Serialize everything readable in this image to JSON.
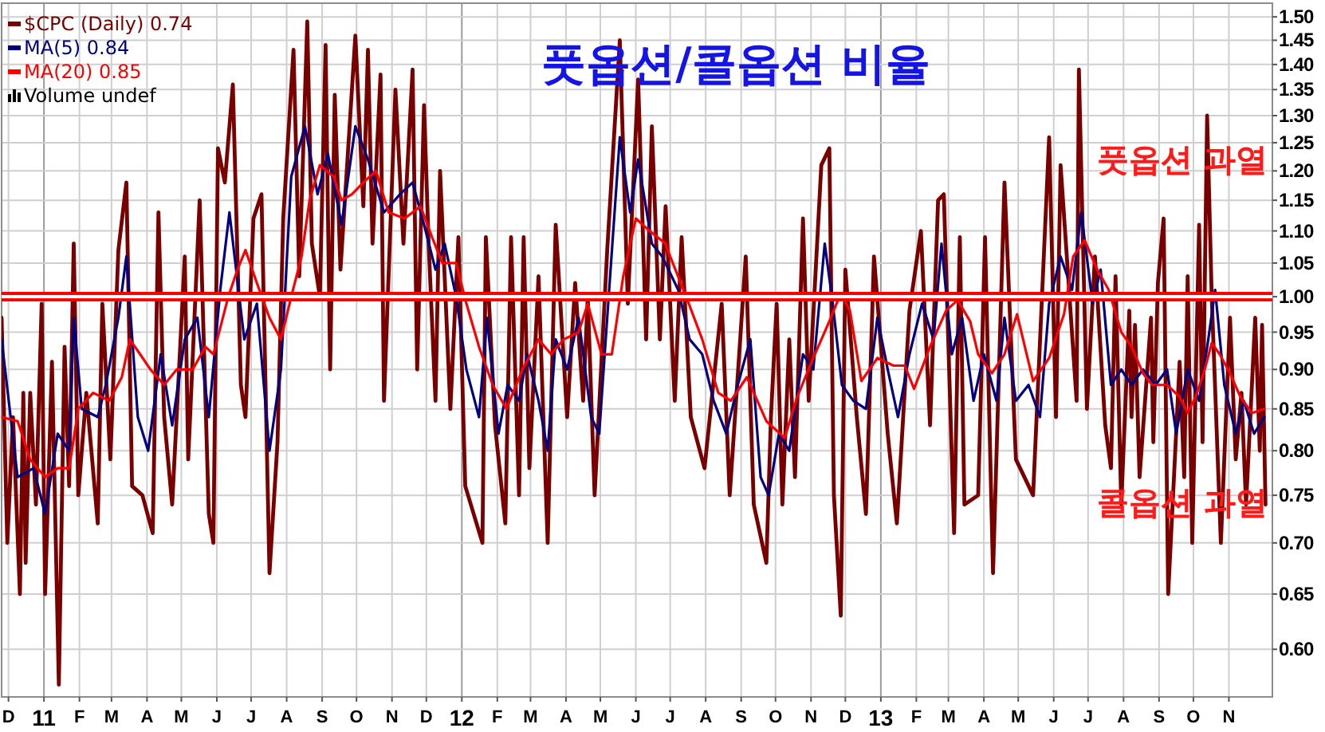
{
  "chart_data": {
    "type": "line",
    "title": "풋옵션/콜옵션 비율",
    "log": true,
    "grid": true,
    "legend": "top left",
    "xlim": [
      "2010-11-25",
      "2013-12-09"
    ],
    "xticks": [
      {
        "value": "2010-12-01",
        "label": "D"
      },
      {
        "value": "2011-01-01",
        "label": "11"
      },
      {
        "value": "2011-02-01",
        "label": "F"
      },
      {
        "value": "2011-03-01",
        "label": "M"
      },
      {
        "value": "2011-04-01",
        "label": "A"
      },
      {
        "value": "2011-05-01",
        "label": "M"
      },
      {
        "value": "2011-06-01",
        "label": "J"
      },
      {
        "value": "2011-07-01",
        "label": "J"
      },
      {
        "value": "2011-08-01",
        "label": "A"
      },
      {
        "value": "2011-09-01",
        "label": "S"
      },
      {
        "value": "2011-10-01",
        "label": "O"
      },
      {
        "value": "2011-11-01",
        "label": "N"
      },
      {
        "value": "2011-12-01",
        "label": "D"
      },
      {
        "value": "2012-01-01",
        "label": "12"
      },
      {
        "value": "2012-02-01",
        "label": "F"
      },
      {
        "value": "2012-03-01",
        "label": "M"
      },
      {
        "value": "2012-04-01",
        "label": "A"
      },
      {
        "value": "2012-05-01",
        "label": "M"
      },
      {
        "value": "2012-06-01",
        "label": "J"
      },
      {
        "value": "2012-07-01",
        "label": "J"
      },
      {
        "value": "2012-08-01",
        "label": "A"
      },
      {
        "value": "2012-09-01",
        "label": "S"
      },
      {
        "value": "2012-10-01",
        "label": "O"
      },
      {
        "value": "2012-11-01",
        "label": "N"
      },
      {
        "value": "2012-12-01",
        "label": "D"
      },
      {
        "value": "2013-01-01",
        "label": "13"
      },
      {
        "value": "2013-02-01",
        "label": "F"
      },
      {
        "value": "2013-03-01",
        "label": "M"
      },
      {
        "value": "2013-04-01",
        "label": "A"
      },
      {
        "value": "2013-05-01",
        "label": "M"
      },
      {
        "value": "2013-06-01",
        "label": "J"
      },
      {
        "value": "2013-07-01",
        "label": "J"
      },
      {
        "value": "2013-08-01",
        "label": "A"
      },
      {
        "value": "2013-09-01",
        "label": "S"
      },
      {
        "value": "2013-10-01",
        "label": "O"
      },
      {
        "value": "2013-11-01",
        "label": "N"
      }
    ],
    "ylim": [
      0.56,
      1.53
    ],
    "yticks": [
      {
        "value": 0.6,
        "label": "0.60"
      },
      0.65,
      {
        "value": 0.7,
        "label": "0.70"
      },
      0.75,
      {
        "value": 0.8,
        "label": "0.80"
      },
      0.85,
      {
        "value": 0.9,
        "label": "0.90"
      },
      0.95,
      {
        "value": 1.0,
        "label": "1.00"
      },
      1.05,
      {
        "value": 1.1,
        "label": "1.10"
      },
      1.15,
      {
        "value": 1.2,
        "label": "1.20"
      },
      1.25,
      {
        "value": 1.3,
        "label": "1.30"
      },
      1.35,
      {
        "value": 1.4,
        "label": "1.40"
      },
      1.45,
      {
        "value": 1.5,
        "label": "1.50"
      }
    ],
    "ref_lines": [
      {
        "axis": "y",
        "value": 1.0,
        "color": "#ff0000"
      }
    ],
    "annotations": [
      "풋옵션 과열",
      "콜옵션 과열",
      "Volume undef"
    ],
    "series": [
      {
        "name": "$CPC (Daily) 0.74",
        "color": "#7a0000",
        "x": [
          "2010-11-25",
          "2010-11-30",
          "2010-12-05",
          "2010-12-11",
          "2010-12-14",
          "2010-12-16",
          "2010-12-20",
          "2010-12-25",
          "2010-12-30",
          "2011-01-02",
          "2011-01-08",
          "2011-01-14",
          "2011-01-19",
          "2011-01-23",
          "2011-01-27",
          "2011-01-31",
          "2011-02-07",
          "2011-02-17",
          "2011-02-21",
          "2011-02-28",
          "2011-03-07",
          "2011-03-14",
          "2011-03-19",
          "2011-03-28",
          "2011-04-06",
          "2011-04-11",
          "2011-04-16",
          "2011-04-23",
          "2011-05-04",
          "2011-05-07",
          "2011-05-17",
          "2011-05-25",
          "2011-05-29",
          "2011-06-02",
          "2011-06-08",
          "2011-06-15",
          "2011-06-22",
          "2011-06-26",
          "2011-07-03",
          "2011-07-10",
          "2011-07-17",
          "2011-07-24",
          "2011-07-29",
          "2011-08-07",
          "2011-08-12",
          "2011-08-19",
          "2011-08-23",
          "2011-08-30",
          "2011-09-04",
          "2011-09-08",
          "2011-09-12",
          "2011-09-17",
          "2011-09-30",
          "2011-10-07",
          "2011-10-11",
          "2011-10-15",
          "2011-10-22",
          "2011-10-25",
          "2011-11-04",
          "2011-11-11",
          "2011-11-19",
          "2011-11-23",
          "2011-11-29",
          "2011-12-03",
          "2011-12-09",
          "2011-12-13",
          "2011-12-22",
          "2011-12-29",
          "2012-01-04",
          "2012-01-19",
          "2012-01-22",
          "2012-01-30",
          "2012-02-08",
          "2012-02-13",
          "2012-02-20",
          "2012-02-24",
          "2012-02-29",
          "2012-03-08",
          "2012-03-16",
          "2012-03-23",
          "2012-04-02",
          "2012-04-09",
          "2012-04-16",
          "2012-04-20",
          "2012-04-26",
          "2012-05-07",
          "2012-05-18",
          "2012-05-25",
          "2012-06-03",
          "2012-06-10",
          "2012-06-15",
          "2012-06-22",
          "2012-06-27",
          "2012-07-05",
          "2012-07-11",
          "2012-07-19",
          "2012-07-31",
          "2012-08-15",
          "2012-08-22",
          "2012-09-05",
          "2012-09-12",
          "2012-09-23",
          "2012-09-27",
          "2012-10-02",
          "2012-10-07",
          "2012-10-13",
          "2012-10-18",
          "2012-10-25",
          "2012-10-30",
          "2012-11-10",
          "2012-11-17",
          "2012-11-21",
          "2012-11-27",
          "2012-12-01",
          "2012-12-11",
          "2012-12-19",
          "2012-12-26",
          "2013-01-07",
          "2013-01-15",
          "2013-01-26",
          "2013-02-05",
          "2013-02-13",
          "2013-02-20",
          "2013-02-25",
          "2013-03-06",
          "2013-03-11",
          "2013-03-15",
          "2013-03-27",
          "2013-04-02",
          "2013-04-09",
          "2013-04-19",
          "2013-04-29",
          "2013-05-14",
          "2013-05-28",
          "2013-06-03",
          "2013-06-07",
          "2013-06-21",
          "2013-06-23",
          "2013-06-30",
          "2013-07-07",
          "2013-07-16",
          "2013-07-21",
          "2013-07-25",
          "2013-07-30",
          "2013-08-06",
          "2013-08-08",
          "2013-08-11",
          "2013-08-15",
          "2013-08-25",
          "2013-08-27",
          "2013-08-31",
          "2013-09-05",
          "2013-09-09",
          "2013-09-19",
          "2013-09-23",
          "2013-09-26",
          "2013-09-30",
          "2013-10-06",
          "2013-10-09",
          "2013-10-13",
          "2013-10-17",
          "2013-10-25",
          "2013-11-02",
          "2013-11-07",
          "2013-11-12",
          "2013-11-16",
          "2013-11-24",
          "2013-11-28",
          "2013-11-30",
          "2013-12-03"
        ],
        "values": [
          0.97,
          0.7,
          0.84,
          0.65,
          0.87,
          0.68,
          0.87,
          0.74,
          0.99,
          0.65,
          0.91,
          0.57,
          0.93,
          0.76,
          1.08,
          0.75,
          0.87,
          0.72,
          0.99,
          0.79,
          1.07,
          1.18,
          0.76,
          0.75,
          0.71,
          1.13,
          0.84,
          0.74,
          1.06,
          0.79,
          1.15,
          0.73,
          0.7,
          1.24,
          1.18,
          1.36,
          0.88,
          0.84,
          1.12,
          1.16,
          0.67,
          0.81,
          1.12,
          1.43,
          1.03,
          1.49,
          1.08,
          1.0,
          1.44,
          0.9,
          1.34,
          1.04,
          1.46,
          1.14,
          1.43,
          1.08,
          1.38,
          0.86,
          1.35,
          1.08,
          1.39,
          0.9,
          1.32,
          1.08,
          0.86,
          1.2,
          0.85,
          1.09,
          0.76,
          0.7,
          1.09,
          0.83,
          0.72,
          1.09,
          0.75,
          1.09,
          0.78,
          1.03,
          0.7,
          1.11,
          0.84,
          1.02,
          0.86,
          1.0,
          0.75,
          1.07,
          1.45,
          0.99,
          1.37,
          0.94,
          1.28,
          0.94,
          1.14,
          0.86,
          1.09,
          0.84,
          0.78,
          0.99,
          0.75,
          1.06,
          0.74,
          0.68,
          0.84,
          0.99,
          0.74,
          0.94,
          0.77,
          1.12,
          0.86,
          1.21,
          1.24,
          0.75,
          0.63,
          1.04,
          0.84,
          0.73,
          1.06,
          0.82,
          0.72,
          0.98,
          1.1,
          0.83,
          1.15,
          1.16,
          0.71,
          1.09,
          0.74,
          0.75,
          1.09,
          0.67,
          1.18,
          0.79,
          0.75,
          1.26,
          0.84,
          1.21,
          0.86,
          1.39,
          0.85,
          1.06,
          0.83,
          0.78,
          1.03,
          0.74,
          0.98,
          0.84,
          0.96,
          0.77,
          0.97,
          0.81,
          1.02,
          1.12,
          0.65,
          0.91,
          0.77,
          1.03,
          0.7,
          1.11,
          0.81,
          1.3,
          1.0,
          0.7,
          0.97,
          0.79,
          0.87,
          0.74,
          0.97,
          0.8,
          0.96,
          0.74
        ]
      },
      {
        "name": "MA(5) 0.84",
        "color": "#000080",
        "x": [
          "2010-11-25",
          "2010-12-09",
          "2010-12-23",
          "2011-01-02",
          "2011-01-13",
          "2011-01-23",
          "2011-01-27",
          "2011-02-03",
          "2011-02-17",
          "2011-02-24",
          "2011-03-07",
          "2011-03-14",
          "2011-03-24",
          "2011-04-02",
          "2011-04-13",
          "2011-04-23",
          "2011-05-04",
          "2011-05-15",
          "2011-05-25",
          "2011-06-04",
          "2011-06-12",
          "2011-06-25",
          "2011-07-06",
          "2011-07-17",
          "2011-07-27",
          "2011-08-05",
          "2011-08-17",
          "2011-08-28",
          "2011-09-06",
          "2011-09-18",
          "2011-09-30",
          "2011-10-11",
          "2011-10-25",
          "2011-11-08",
          "2011-11-19",
          "2011-11-29",
          "2011-12-09",
          "2011-12-17",
          "2011-12-27",
          "2012-01-05",
          "2012-01-16",
          "2012-01-23",
          "2012-02-02",
          "2012-02-10",
          "2012-02-20",
          "2012-02-27",
          "2012-03-08",
          "2012-03-16",
          "2012-03-23",
          "2012-04-02",
          "2012-04-12",
          "2012-04-23",
          "2012-04-30",
          "2012-05-07",
          "2012-05-18",
          "2012-05-27",
          "2012-06-03",
          "2012-06-15",
          "2012-06-24",
          "2012-07-08",
          "2012-07-18",
          "2012-07-29",
          "2012-08-08",
          "2012-08-19",
          "2012-08-29",
          "2012-09-09",
          "2012-09-18",
          "2012-09-25",
          "2012-10-04",
          "2012-10-13",
          "2012-10-25",
          "2012-11-03",
          "2012-11-13",
          "2012-11-20",
          "2012-11-28",
          "2012-12-08",
          "2012-12-19",
          "2012-12-29",
          "2013-01-07",
          "2013-01-16",
          "2013-01-26",
          "2013-02-06",
          "2013-02-16",
          "2013-02-23",
          "2013-03-04",
          "2013-03-13",
          "2013-03-23",
          "2013-04-01",
          "2013-04-12",
          "2013-04-19",
          "2013-04-29",
          "2013-05-10",
          "2013-05-20",
          "2013-05-28",
          "2013-06-07",
          "2013-06-17",
          "2013-06-25",
          "2013-07-05",
          "2013-07-12",
          "2013-07-21",
          "2013-07-30",
          "2013-08-08",
          "2013-08-18",
          "2013-08-29",
          "2013-09-08",
          "2013-09-16",
          "2013-09-26",
          "2013-10-06",
          "2013-10-14",
          "2013-10-20",
          "2013-10-28",
          "2013-11-07",
          "2013-11-14",
          "2013-11-23",
          "2013-12-02"
        ],
        "values": [
          0.94,
          0.77,
          0.78,
          0.73,
          0.82,
          0.8,
          0.97,
          0.85,
          0.84,
          0.88,
          0.97,
          1.06,
          0.84,
          0.8,
          0.92,
          0.83,
          0.94,
          0.97,
          0.84,
          1.01,
          1.13,
          0.94,
          0.99,
          0.8,
          0.9,
          1.19,
          1.28,
          1.16,
          1.23,
          1.11,
          1.28,
          1.22,
          1.13,
          1.16,
          1.18,
          1.11,
          1.04,
          1.08,
          1.0,
          0.9,
          0.84,
          0.97,
          0.82,
          0.88,
          0.86,
          0.92,
          0.86,
          0.8,
          0.94,
          0.9,
          0.97,
          0.84,
          0.82,
          0.97,
          1.26,
          1.13,
          1.22,
          1.08,
          1.06,
          1.01,
          0.94,
          0.92,
          0.86,
          0.82,
          0.88,
          0.94,
          0.77,
          0.75,
          0.82,
          0.8,
          0.92,
          0.9,
          1.08,
          0.99,
          0.88,
          0.86,
          0.85,
          0.97,
          0.9,
          0.84,
          0.92,
          0.99,
          0.94,
          1.08,
          0.92,
          0.97,
          0.86,
          0.92,
          0.86,
          0.97,
          0.86,
          0.88,
          0.84,
          0.99,
          1.06,
          1.01,
          1.13,
          0.99,
          1.04,
          0.88,
          0.9,
          0.88,
          0.9,
          0.88,
          0.9,
          0.82,
          0.9,
          0.86,
          0.94,
          1.01,
          0.88,
          0.82,
          0.86,
          0.82,
          0.84
        ]
      },
      {
        "name": "MA(20) 0.85",
        "color": "#ff0000",
        "x": [
          "2010-11-25",
          "2010-12-09",
          "2010-12-20",
          "2011-01-02",
          "2011-01-13",
          "2011-01-23",
          "2011-01-31",
          "2011-02-13",
          "2011-02-27",
          "2011-03-10",
          "2011-03-17",
          "2011-03-26",
          "2011-04-04",
          "2011-04-16",
          "2011-04-27",
          "2011-05-11",
          "2011-05-22",
          "2011-05-29",
          "2011-06-11",
          "2011-06-19",
          "2011-06-26",
          "2011-07-06",
          "2011-07-17",
          "2011-07-27",
          "2011-08-05",
          "2011-08-14",
          "2011-08-21",
          "2011-08-30",
          "2011-09-11",
          "2011-09-18",
          "2011-09-27",
          "2011-10-07",
          "2011-10-18",
          "2011-10-29",
          "2011-11-12",
          "2011-11-26",
          "2011-12-06",
          "2011-12-15",
          "2011-12-27",
          "2012-01-05",
          "2012-01-16",
          "2012-01-28",
          "2012-02-09",
          "2012-02-23",
          "2012-03-08",
          "2012-03-19",
          "2012-03-30",
          "2012-04-12",
          "2012-04-20",
          "2012-05-02",
          "2012-05-11",
          "2012-05-21",
          "2012-06-01",
          "2012-06-13",
          "2012-06-27",
          "2012-07-01",
          "2012-07-15",
          "2012-07-29",
          "2012-08-12",
          "2012-08-23",
          "2012-09-06",
          "2012-09-23",
          "2012-10-09",
          "2012-10-20",
          "2012-11-03",
          "2012-11-17",
          "2012-11-27",
          "2012-12-05",
          "2012-12-15",
          "2012-12-29",
          "2013-01-12",
          "2013-01-22",
          "2013-01-30",
          "2013-02-13",
          "2013-02-27",
          "2013-03-09",
          "2013-03-20",
          "2013-03-27",
          "2013-04-08",
          "2013-04-19",
          "2013-04-30",
          "2013-05-14",
          "2013-05-28",
          "2013-06-10",
          "2013-06-18",
          "2013-06-28",
          "2013-07-09",
          "2013-07-19",
          "2013-07-30",
          "2013-08-08",
          "2013-08-18",
          "2013-08-26",
          "2013-09-08",
          "2013-09-19",
          "2013-09-26",
          "2013-10-03",
          "2013-10-10",
          "2013-10-17",
          "2013-10-24",
          "2013-11-02",
          "2013-11-11",
          "2013-11-21",
          "2013-12-02"
        ],
        "values": [
          0.84,
          0.835,
          0.79,
          0.77,
          0.78,
          0.78,
          0.85,
          0.87,
          0.86,
          0.89,
          0.94,
          0.92,
          0.9,
          0.88,
          0.9,
          0.9,
          0.93,
          0.92,
          1.0,
          1.04,
          1.07,
          1.02,
          0.97,
          0.94,
          1.0,
          1.06,
          1.15,
          1.21,
          1.19,
          1.15,
          1.16,
          1.18,
          1.2,
          1.13,
          1.12,
          1.14,
          1.09,
          1.05,
          1.05,
          0.99,
          0.93,
          0.88,
          0.85,
          0.9,
          0.94,
          0.92,
          0.94,
          0.95,
          0.99,
          0.92,
          0.92,
          1.03,
          1.12,
          1.1,
          1.08,
          1.06,
          1.0,
          0.94,
          0.87,
          0.86,
          0.89,
          0.835,
          0.815,
          0.865,
          0.915,
          0.965,
          1.005,
          0.98,
          0.885,
          0.915,
          0.905,
          0.905,
          0.875,
          0.93,
          0.98,
          0.995,
          0.965,
          0.92,
          0.895,
          0.92,
          0.975,
          0.885,
          0.915,
          0.975,
          1.06,
          1.085,
          1.04,
          1.01,
          0.95,
          0.93,
          0.895,
          0.88,
          0.88,
          0.865,
          0.845,
          0.865,
          0.895,
          0.935,
          0.92,
          0.895,
          0.865,
          0.845,
          0.85
        ]
      }
    ]
  }
}
